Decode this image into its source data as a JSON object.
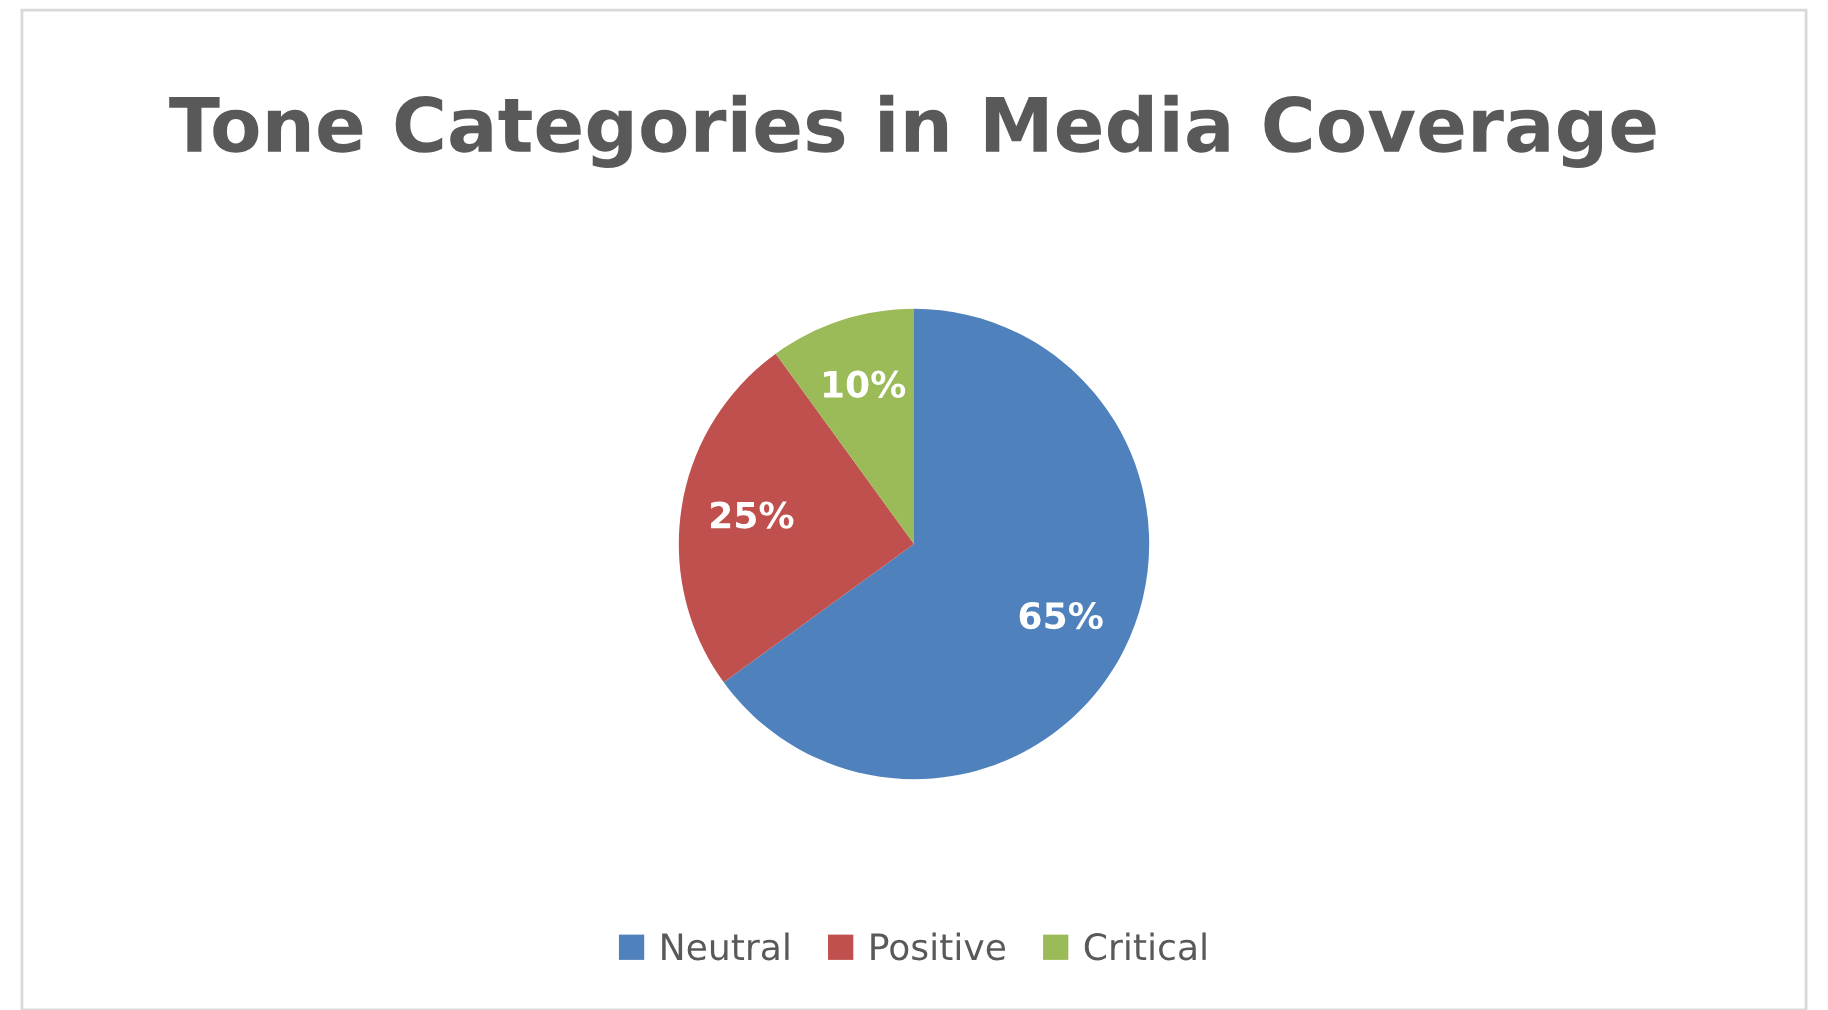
{
  "chart_data": {
    "type": "pie",
    "title": "Tone Categories in Media Coverage",
    "categories": [
      "Neutral",
      "Positive",
      "Critical"
    ],
    "values": [
      65,
      25,
      10
    ],
    "value_labels": [
      "65%",
      "25%",
      "10%"
    ],
    "colors": [
      "#4f81bd",
      "#c0504d",
      "#9bbb59"
    ],
    "legend": "bottom"
  }
}
